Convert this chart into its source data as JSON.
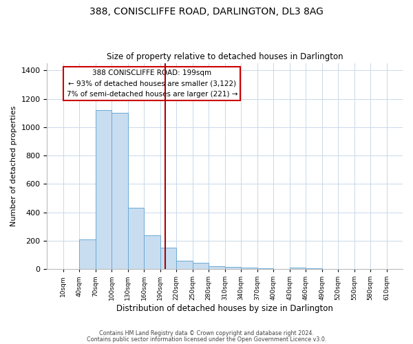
{
  "title": "388, CONISCLIFFE ROAD, DARLINGTON, DL3 8AG",
  "subtitle": "Size of property relative to detached houses in Darlington",
  "xlabel": "Distribution of detached houses by size in Darlington",
  "ylabel": "Number of detached properties",
  "footer_lines": [
    "Contains HM Land Registry data © Crown copyright and database right 2024.",
    "Contains public sector information licensed under the Open Government Licence v3.0."
  ],
  "bin_edges": [
    10,
    40,
    70,
    100,
    130,
    160,
    190,
    220,
    250,
    280,
    310,
    340,
    370,
    400,
    430,
    460,
    490,
    520,
    550,
    580,
    610
  ],
  "counts": [
    0,
    210,
    1120,
    1100,
    430,
    240,
    150,
    60,
    45,
    20,
    15,
    10,
    5,
    0,
    10,
    5,
    0,
    0,
    0,
    0
  ],
  "bar_fill_color": "#c9ddf0",
  "bar_edge_color": "#6aaad4",
  "vline_x": 199,
  "vline_color": "#aa0000",
  "annotation_box_text": "388 CONISCLIFFE ROAD: 199sqm\n← 93% of detached houses are smaller (3,122)\n7% of semi-detached houses are larger (221) →",
  "annotation_box_edge_color": "#cc0000",
  "annotation_box_face_color": "#ffffff",
  "ylim": [
    0,
    1450
  ],
  "yticks": [
    0,
    200,
    400,
    600,
    800,
    1000,
    1200,
    1400
  ],
  "background_color": "#ffffff",
  "grid_color": "#c8d8e8",
  "tick_labels": [
    "10sqm",
    "40sqm",
    "70sqm",
    "100sqm",
    "130sqm",
    "160sqm",
    "190sqm",
    "220sqm",
    "250sqm",
    "280sqm",
    "310sqm",
    "340sqm",
    "370sqm",
    "400sqm",
    "430sqm",
    "460sqm",
    "490sqm",
    "520sqm",
    "550sqm",
    "580sqm",
    "610sqm"
  ]
}
